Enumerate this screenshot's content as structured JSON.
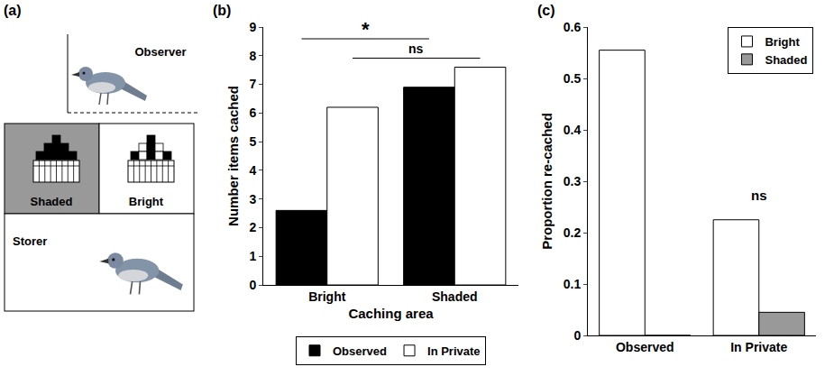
{
  "diagram": {
    "panel_label": "(a)",
    "observer": "Observer",
    "areas": [
      "Shaded",
      "Bright"
    ],
    "storer": "Storer"
  },
  "chart_data": [
    {
      "panel_label": "(b)",
      "type": "bar",
      "categories": [
        "Bright",
        "Shaded"
      ],
      "series": [
        {
          "name": "Observed",
          "color": "#000000",
          "values": [
            2.6,
            6.9
          ]
        },
        {
          "name": "In Private",
          "color": "#ffffff",
          "values": [
            6.2,
            7.6
          ]
        }
      ],
      "x_label": "Caching area",
      "y_label": "Number items cached",
      "ylim": [
        0,
        9
      ],
      "yticks": [
        0,
        1,
        2,
        3,
        4,
        5,
        6,
        7,
        8,
        9
      ],
      "legend": "bottom",
      "annotations": [
        {
          "text": "*",
          "series": "Observed"
        },
        {
          "text": "ns",
          "series": "In Private"
        }
      ]
    },
    {
      "panel_label": "(c)",
      "type": "bar",
      "categories": [
        "Observed",
        "In Private"
      ],
      "series": [
        {
          "name": "Bright",
          "color": "#ffffff",
          "values": [
            0.555,
            0.225
          ]
        },
        {
          "name": "Shaded",
          "color": "#999999",
          "values": [
            0,
            0.045
          ]
        }
      ],
      "y_label": "Proportion re-cached",
      "ylim": [
        0,
        0.6
      ],
      "yticks": [
        0,
        0.1,
        0.2,
        0.3,
        0.4,
        0.5,
        0.6
      ],
      "legend": "top right",
      "annotations": [
        {
          "text": "ns",
          "category": "In Private"
        }
      ]
    }
  ]
}
